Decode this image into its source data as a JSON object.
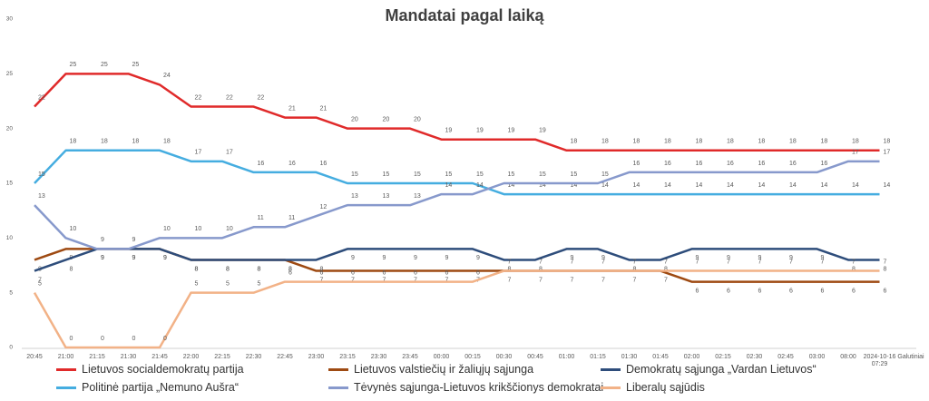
{
  "chart_data": {
    "type": "line",
    "title": "Mandatai pagal laiką",
    "categories": [
      "20:45",
      "21:00",
      "21:15",
      "21:30",
      "21:45",
      "22:00",
      "22:15",
      "22:30",
      "22:45",
      "23:00",
      "23:15",
      "23:30",
      "23:45",
      "00:00",
      "00:15",
      "00:30",
      "00:45",
      "01:00",
      "01:15",
      "01:30",
      "01:45",
      "02:00",
      "02:15",
      "02:30",
      "02:45",
      "03:00",
      "08:00",
      "2024-10-16 07:29",
      "Galutiniai"
    ],
    "ylim": [
      0,
      30
    ],
    "yticks": [
      0,
      5,
      10,
      15,
      20,
      25,
      30
    ],
    "grid": false,
    "legend": "bottom",
    "series": [
      {
        "name": "Lietuvos socialdemokratų partija",
        "color": "#e02a2a",
        "values": [
          22,
          25,
          25,
          25,
          24,
          22,
          22,
          22,
          21,
          21,
          20,
          20,
          20,
          19,
          19,
          19,
          19,
          18,
          18,
          18,
          18,
          18,
          18,
          18,
          18,
          18,
          18,
          18,
          null
        ]
      },
      {
        "name": "Lietuvos valstiečių ir žaliųjų sąjunga",
        "color": "#9e4a12",
        "values": [
          8,
          9,
          9,
          9,
          9,
          8,
          8,
          8,
          8,
          7,
          7,
          7,
          7,
          7,
          7,
          7,
          7,
          7,
          7,
          7,
          7,
          6,
          6,
          6,
          6,
          6,
          6,
          6,
          null
        ]
      },
      {
        "name": "Demokratų sąjunga „Vardan Lietuvos“",
        "color": "#2e4d7b",
        "values": [
          7,
          8,
          9,
          9,
          9,
          8,
          8,
          8,
          8,
          8,
          9,
          9,
          9,
          9,
          9,
          8,
          8,
          9,
          9,
          8,
          8,
          9,
          9,
          9,
          9,
          9,
          8,
          8,
          null
        ]
      },
      {
        "name": "Politinė partija „Nemuno Aušra“",
        "color": "#45ade0",
        "values": [
          15,
          18,
          18,
          18,
          18,
          17,
          17,
          16,
          16,
          16,
          15,
          15,
          15,
          15,
          15,
          14,
          14,
          14,
          14,
          14,
          14,
          14,
          14,
          14,
          14,
          14,
          14,
          14,
          null
        ]
      },
      {
        "name": "Tėvynės sąjunga-Lietuvos krikščionys demokratai",
        "color": "#8799cc",
        "values": [
          13,
          10,
          9,
          9,
          10,
          10,
          10,
          11,
          11,
          12,
          13,
          13,
          13,
          14,
          14,
          15,
          15,
          15,
          15,
          16,
          16,
          16,
          16,
          16,
          16,
          16,
          17,
          17,
          null
        ]
      },
      {
        "name": "Liberalų sąjūdis",
        "color": "#f2b287",
        "values": [
          5,
          0,
          0,
          0,
          0,
          5,
          5,
          5,
          6,
          6,
          6,
          6,
          6,
          6,
          6,
          7,
          7,
          7,
          7,
          7,
          7,
          7,
          7,
          7,
          7,
          7,
          7,
          7,
          null
        ]
      }
    ]
  }
}
